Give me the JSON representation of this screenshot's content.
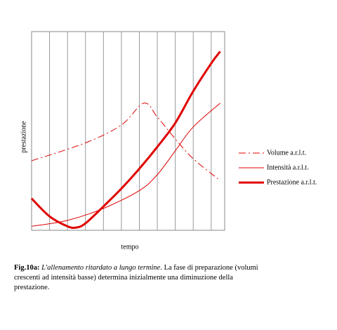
{
  "chart_data": {
    "type": "line",
    "xlabel": "tempo",
    "ylabel": "prestazione",
    "xlim": [
      0,
      10.75
    ],
    "xticks": [
      1,
      2,
      3,
      4,
      5,
      6,
      7,
      8,
      9,
      10
    ],
    "ylim": [
      0,
      100
    ],
    "grid": true,
    "legend": "right",
    "series": [
      {
        "name": "Volume a.r.l.t.",
        "color": "#e00000",
        "line_style": "dash-dot",
        "line_width": 1,
        "x": [
          0,
          3,
          5,
          6.25,
          7,
          8,
          9,
          10.5
        ],
        "values": [
          35,
          44,
          53,
          64,
          57,
          46,
          36,
          25
        ]
      },
      {
        "name": "Intensità a.r.l.t.",
        "color": "#e00000",
        "line_style": "solid",
        "line_width": 1,
        "x": [
          0,
          2,
          4,
          6,
          7,
          8,
          9,
          10.5
        ],
        "values": [
          2,
          5,
          11,
          20,
          28,
          40,
          52,
          64
        ]
      },
      {
        "name": "Prestazione a.r.l.t.",
        "color": "#e00000",
        "line_style": "solid",
        "line_width": 3,
        "x": [
          0,
          1,
          2,
          2.5,
          3,
          4,
          5,
          6,
          7,
          8,
          9,
          10,
          10.5
        ],
        "values": [
          16,
          7,
          2,
          1.4,
          3.5,
          12,
          21,
          31,
          42,
          54,
          70,
          84,
          90
        ]
      }
    ]
  },
  "caption": {
    "label": "Fig.10a:",
    "title": "L'allenamento ritardato a lungo termine",
    "text": ". La fase di preparazione (volumi crescenti ad intensità basse) determina inizialmente una diminuzione della prestazione."
  }
}
